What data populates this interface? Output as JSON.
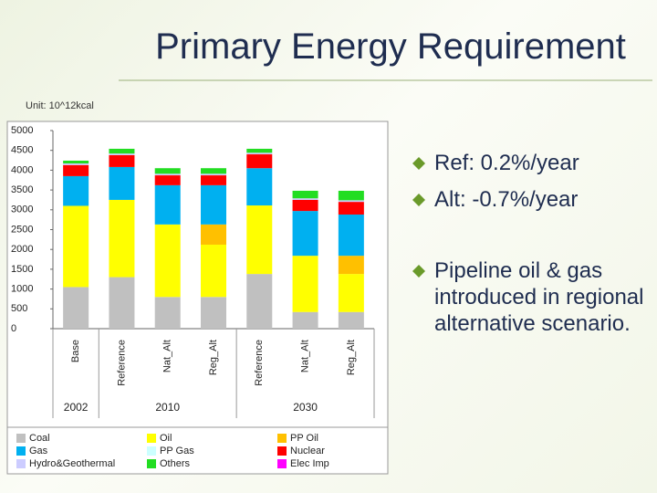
{
  "slide": {
    "title": "Primary Energy Requirement",
    "unit": "Unit: 10^12kcal",
    "bullets": [
      "Ref: 0.2%/year",
      "Alt: -0.7%/year",
      "Pipeline oil & gas introduced in regional alternative scenario."
    ]
  },
  "chart_data": {
    "type": "stacked-bar",
    "groups": [
      {
        "name": "2002",
        "categories": [
          "Base"
        ]
      },
      {
        "name": "2010",
        "categories": [
          "Reference",
          "Nat_Alt",
          "Reg_Alt"
        ]
      },
      {
        "name": "2030",
        "categories": [
          "Reference",
          "Nat_Alt",
          "Reg_Alt"
        ]
      }
    ],
    "series": [
      {
        "name": "Coal",
        "color": "#c0c0c0",
        "values": [
          1050,
          1300,
          800,
          800,
          1380,
          420,
          420
        ]
      },
      {
        "name": "Oil",
        "color": "#ffff00",
        "values": [
          2050,
          1950,
          1830,
          1320,
          1730,
          1420,
          960
        ]
      },
      {
        "name": "PP Oil",
        "color": "#ffc000",
        "values": [
          0,
          0,
          0,
          510,
          0,
          0,
          460
        ]
      },
      {
        "name": "Gas",
        "color": "#00b0f0",
        "values": [
          750,
          830,
          990,
          990,
          940,
          1130,
          1040
        ]
      },
      {
        "name": "PP Gas",
        "color": "#ccffff",
        "values": [
          0,
          0,
          0,
          0,
          0,
          0,
          0
        ]
      },
      {
        "name": "Nuclear",
        "color": "#ff0000",
        "values": [
          280,
          300,
          250,
          250,
          350,
          280,
          320
        ]
      },
      {
        "name": "Hydro&Geothermal",
        "color": "#ccccff",
        "values": [
          40,
          40,
          40,
          40,
          40,
          40,
          40
        ]
      },
      {
        "name": "Others",
        "color": "#22dd22",
        "values": [
          70,
          120,
          140,
          140,
          100,
          190,
          240
        ]
      },
      {
        "name": "Elec Imp",
        "color": "#ff00ff",
        "values": [
          0,
          0,
          0,
          0,
          0,
          0,
          0
        ]
      }
    ],
    "ylim": [
      0,
      5000
    ],
    "yticks": [
      0,
      500,
      1000,
      1500,
      2000,
      2500,
      3000,
      3500,
      4000,
      4500,
      5000
    ],
    "grid": false
  }
}
